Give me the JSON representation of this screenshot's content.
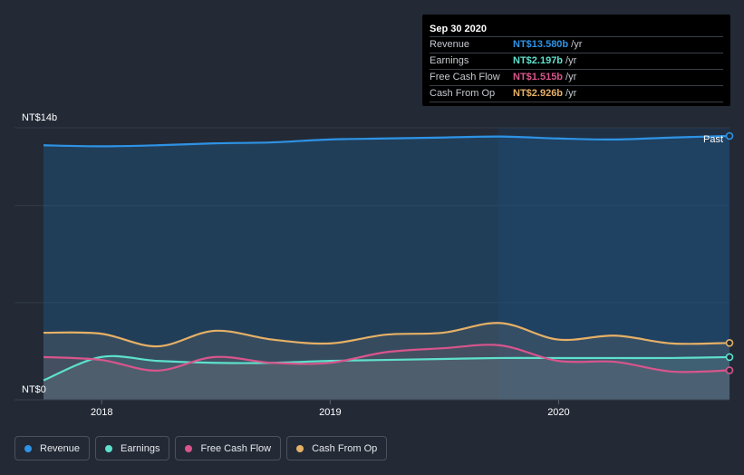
{
  "tooltip": {
    "date": "Sep 30 2020",
    "rows": [
      {
        "label": "Revenue",
        "value": "NT$13.580b",
        "unit": "/yr",
        "color": "#2e93e5"
      },
      {
        "label": "Earnings",
        "value": "NT$2.197b",
        "unit": "/yr",
        "color": "#5ee0cc"
      },
      {
        "label": "Free Cash Flow",
        "value": "NT$1.515b",
        "unit": "/yr",
        "color": "#d8558c"
      },
      {
        "label": "Cash From Op",
        "value": "NT$2.926b",
        "unit": "/yr",
        "color": "#e6b066"
      }
    ]
  },
  "legend": [
    {
      "label": "Revenue",
      "color": "#2e93e5"
    },
    {
      "label": "Earnings",
      "color": "#5ee0cc"
    },
    {
      "label": "Free Cash Flow",
      "color": "#d8558c"
    },
    {
      "label": "Cash From Op",
      "color": "#e6b066"
    }
  ],
  "chart_data": {
    "type": "line",
    "title": "",
    "xlabel": "",
    "ylabel": "",
    "y_unit": "NT$ billions",
    "ylim": [
      0,
      14
    ],
    "ytick_labels": [
      "NT$14b",
      "NT$0"
    ],
    "xtick_labels": [
      "2018",
      "2019",
      "2020"
    ],
    "past_label": "Past",
    "x": [
      "2017-09-30",
      "2017-12-31",
      "2018-03-31",
      "2018-06-30",
      "2018-09-30",
      "2018-12-31",
      "2019-03-31",
      "2019-06-30",
      "2019-09-30",
      "2019-12-31",
      "2020-03-31",
      "2020-06-30",
      "2020-09-30"
    ],
    "series": [
      {
        "name": "Revenue",
        "color": "#2e93e5",
        "values": [
          13.1,
          13.05,
          13.1,
          13.2,
          13.25,
          13.4,
          13.45,
          13.5,
          13.55,
          13.45,
          13.4,
          13.5,
          13.58
        ]
      },
      {
        "name": "Earnings",
        "color": "#5ee0cc",
        "values": [
          1.0,
          2.2,
          2.0,
          1.9,
          1.9,
          2.0,
          2.05,
          2.1,
          2.15,
          2.15,
          2.15,
          2.15,
          2.197
        ]
      },
      {
        "name": "Free Cash Flow",
        "color": "#d8558c",
        "values": [
          2.2,
          2.05,
          1.5,
          2.2,
          1.9,
          1.9,
          2.45,
          2.65,
          2.8,
          2.0,
          1.95,
          1.45,
          1.515
        ]
      },
      {
        "name": "Cash From Op",
        "color": "#e6b066",
        "values": [
          3.45,
          3.4,
          2.75,
          3.55,
          3.1,
          2.9,
          3.35,
          3.45,
          3.95,
          3.1,
          3.3,
          2.9,
          2.926
        ]
      }
    ]
  }
}
